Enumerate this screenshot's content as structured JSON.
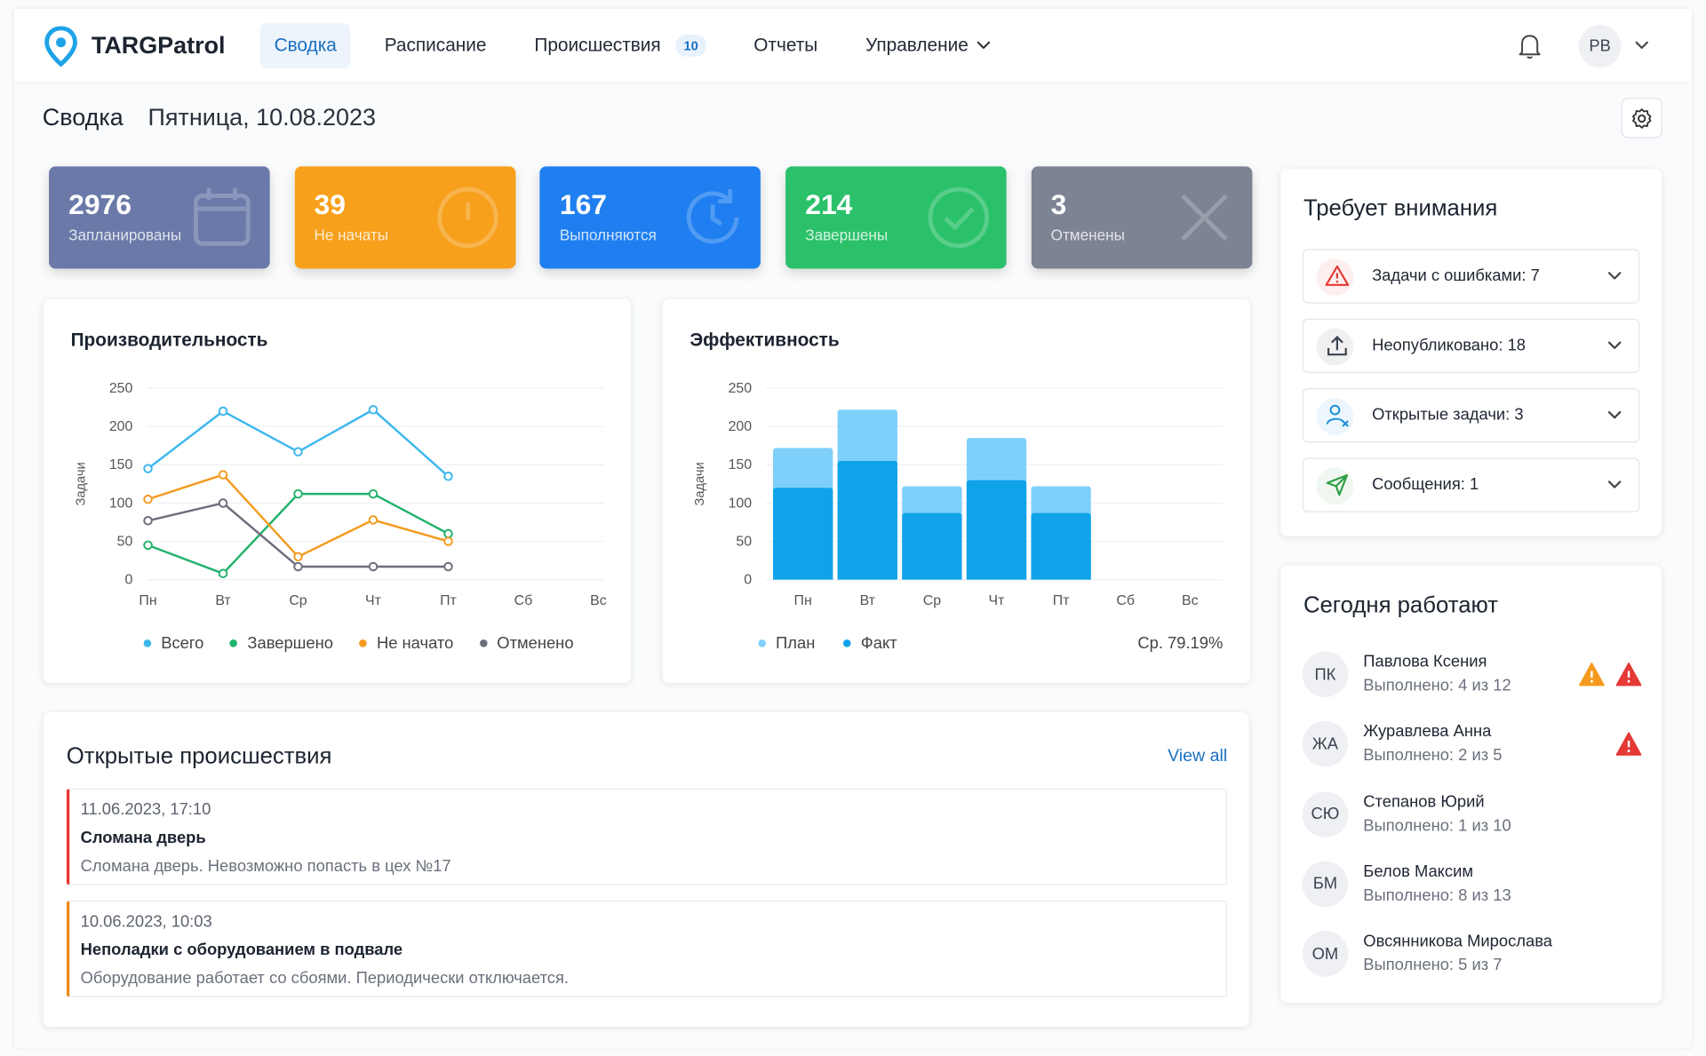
{
  "nav": {
    "brand": "TARGPatrol",
    "items": [
      {
        "label": "Сводка",
        "active": true
      },
      {
        "label": "Расписание",
        "active": false
      },
      {
        "label": "Происшествия",
        "active": false,
        "badge": "10"
      },
      {
        "label": "Отчеты",
        "active": false
      },
      {
        "label": "Управление",
        "active": false,
        "dropdown": true
      }
    ],
    "user_initials": "PB"
  },
  "header": {
    "title": "Сводка",
    "date": "Пятница, 10.08.2023"
  },
  "stats": [
    {
      "value": 2976,
      "label": "Запланированы",
      "color": "#6a79a8",
      "icon": "calendar"
    },
    {
      "value": 39,
      "label": "Не начаты",
      "color": "#f7a01c",
      "icon": "alert"
    },
    {
      "value": 167,
      "label": "Выполняются",
      "color": "#1f7ff0",
      "icon": "refresh"
    },
    {
      "value": 214,
      "label": "Завершены",
      "color": "#2bc16a",
      "icon": "check"
    },
    {
      "value": 3,
      "label": "Отменены",
      "color": "#7c8393",
      "icon": "cross"
    }
  ],
  "performance_chart": {
    "type": "line",
    "title": "Производительность",
    "y_label": "Задачи",
    "categories": [
      "Пн",
      "Вт",
      "Ср",
      "Чт",
      "Пт",
      "Сб",
      "Вс"
    ],
    "series": [
      {
        "name": "Всего",
        "color": "#3db8ee",
        "values": [
          145,
          220,
          167,
          222,
          135,
          null,
          null
        ]
      },
      {
        "name": "Завершено",
        "color": "#21b26b",
        "values": [
          45,
          8,
          112,
          112,
          60,
          null,
          null
        ]
      },
      {
        "name": "Не начато",
        "color": "#f59a1f",
        "values": [
          105,
          137,
          30,
          78,
          50,
          null,
          null
        ]
      },
      {
        "name": "Отменено",
        "color": "#6b6f7b",
        "values": [
          77,
          100,
          17,
          17,
          17,
          null,
          null
        ]
      }
    ],
    "ylim": [
      0,
      250
    ],
    "yticks": [
      0,
      50,
      100,
      150,
      200,
      250
    ],
    "grid": true
  },
  "efficiency_chart": {
    "type": "bar",
    "title": "Эффективность",
    "y_label": "Задачи",
    "categories": [
      "Пн",
      "Вт",
      "Ср",
      "Чт",
      "Пт",
      "Сб",
      "Вс"
    ],
    "series": [
      {
        "name": "План",
        "color": "#7ed0fb",
        "values": [
          172,
          222,
          122,
          185,
          122,
          null,
          null
        ]
      },
      {
        "name": "Факт",
        "color": "#10a3ea",
        "values": [
          120,
          155,
          87,
          130,
          87,
          null,
          null
        ]
      }
    ],
    "ylim": [
      0,
      250
    ],
    "yticks": [
      0,
      50,
      100,
      150,
      200,
      250
    ],
    "grid": true,
    "average": "Ср. 79.19%"
  },
  "attention": {
    "title": "Требует внимания",
    "items": [
      {
        "label": "Задачи с ошибками: 7",
        "icon": "warning",
        "color": "#e53935"
      },
      {
        "label": "Неопубликовано: 18",
        "icon": "upload",
        "color": "#3c4450"
      },
      {
        "label": "Открытые задачи: 3",
        "icon": "person",
        "color": "#1a8fd8"
      },
      {
        "label": "Сообщения: 1",
        "icon": "send",
        "color": "#2f9e44"
      }
    ]
  },
  "working_today": {
    "title": "Сегодня работают",
    "people": [
      {
        "initials": "ПК",
        "name": "Павлова Ксения",
        "progress": "Выполнено: 4 из 12",
        "warnings": [
          "#f59a1f",
          "#e53935"
        ]
      },
      {
        "initials": "ЖА",
        "name": "Журавлева Анна",
        "progress": "Выполнено: 2 из 5",
        "warnings": [
          "#e53935"
        ]
      },
      {
        "initials": "СЮ",
        "name": "Степанов Юрий",
        "progress": "Выполнено: 1 из 10",
        "warnings": []
      },
      {
        "initials": "БМ",
        "name": "Белов Максим",
        "progress": "Выполнено: 8 из 13",
        "warnings": []
      },
      {
        "initials": "ОМ",
        "name": "Овсянникова Мирослава",
        "progress": "Выполнено: 5 из 7",
        "warnings": []
      }
    ]
  },
  "incidents": {
    "title": "Открытые происшествия",
    "view_all": "View all",
    "items": [
      {
        "time": "11.06.2023, 17:10",
        "title": "Сломана дверь",
        "description": "Сломана дверь. Невозможно попасть в цех №17",
        "color": "#e53935"
      },
      {
        "time": "10.06.2023, 10:03",
        "title": "Неполадки с оборудованием в подвале",
        "description": "Оборудование работает со сбоями. Периодически отключается.",
        "color": "#f08a1c"
      }
    ]
  }
}
